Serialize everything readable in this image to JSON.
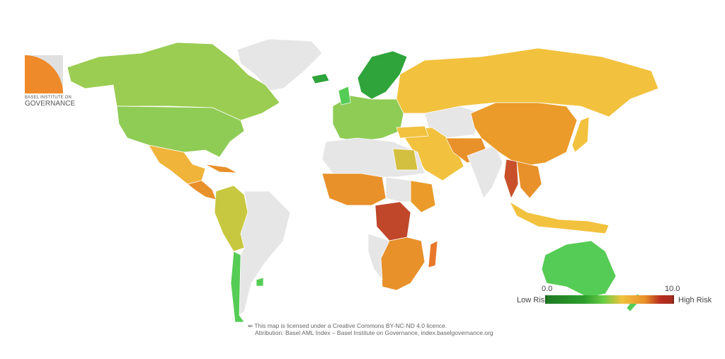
{
  "logo": {
    "line1": "BASEL INSTITUTE ON",
    "line2": "GOVERNANCE"
  },
  "legend": {
    "min": "0.0",
    "max": "10.0",
    "low_label": "Low Risk",
    "high_label": "High Risk",
    "colors": {
      "low": "#1f7a22",
      "mid": "#f2c23e",
      "high": "#a52a1f",
      "no_data": "#e6e6e6"
    }
  },
  "credit": {
    "line1": "This map is licensed under a Creative Commons BY-NC-ND 4.0 licence.",
    "line2": "Attribution: Basel AML Index – Basel Institute on Governance, index.baselgovernance.org"
  }
}
